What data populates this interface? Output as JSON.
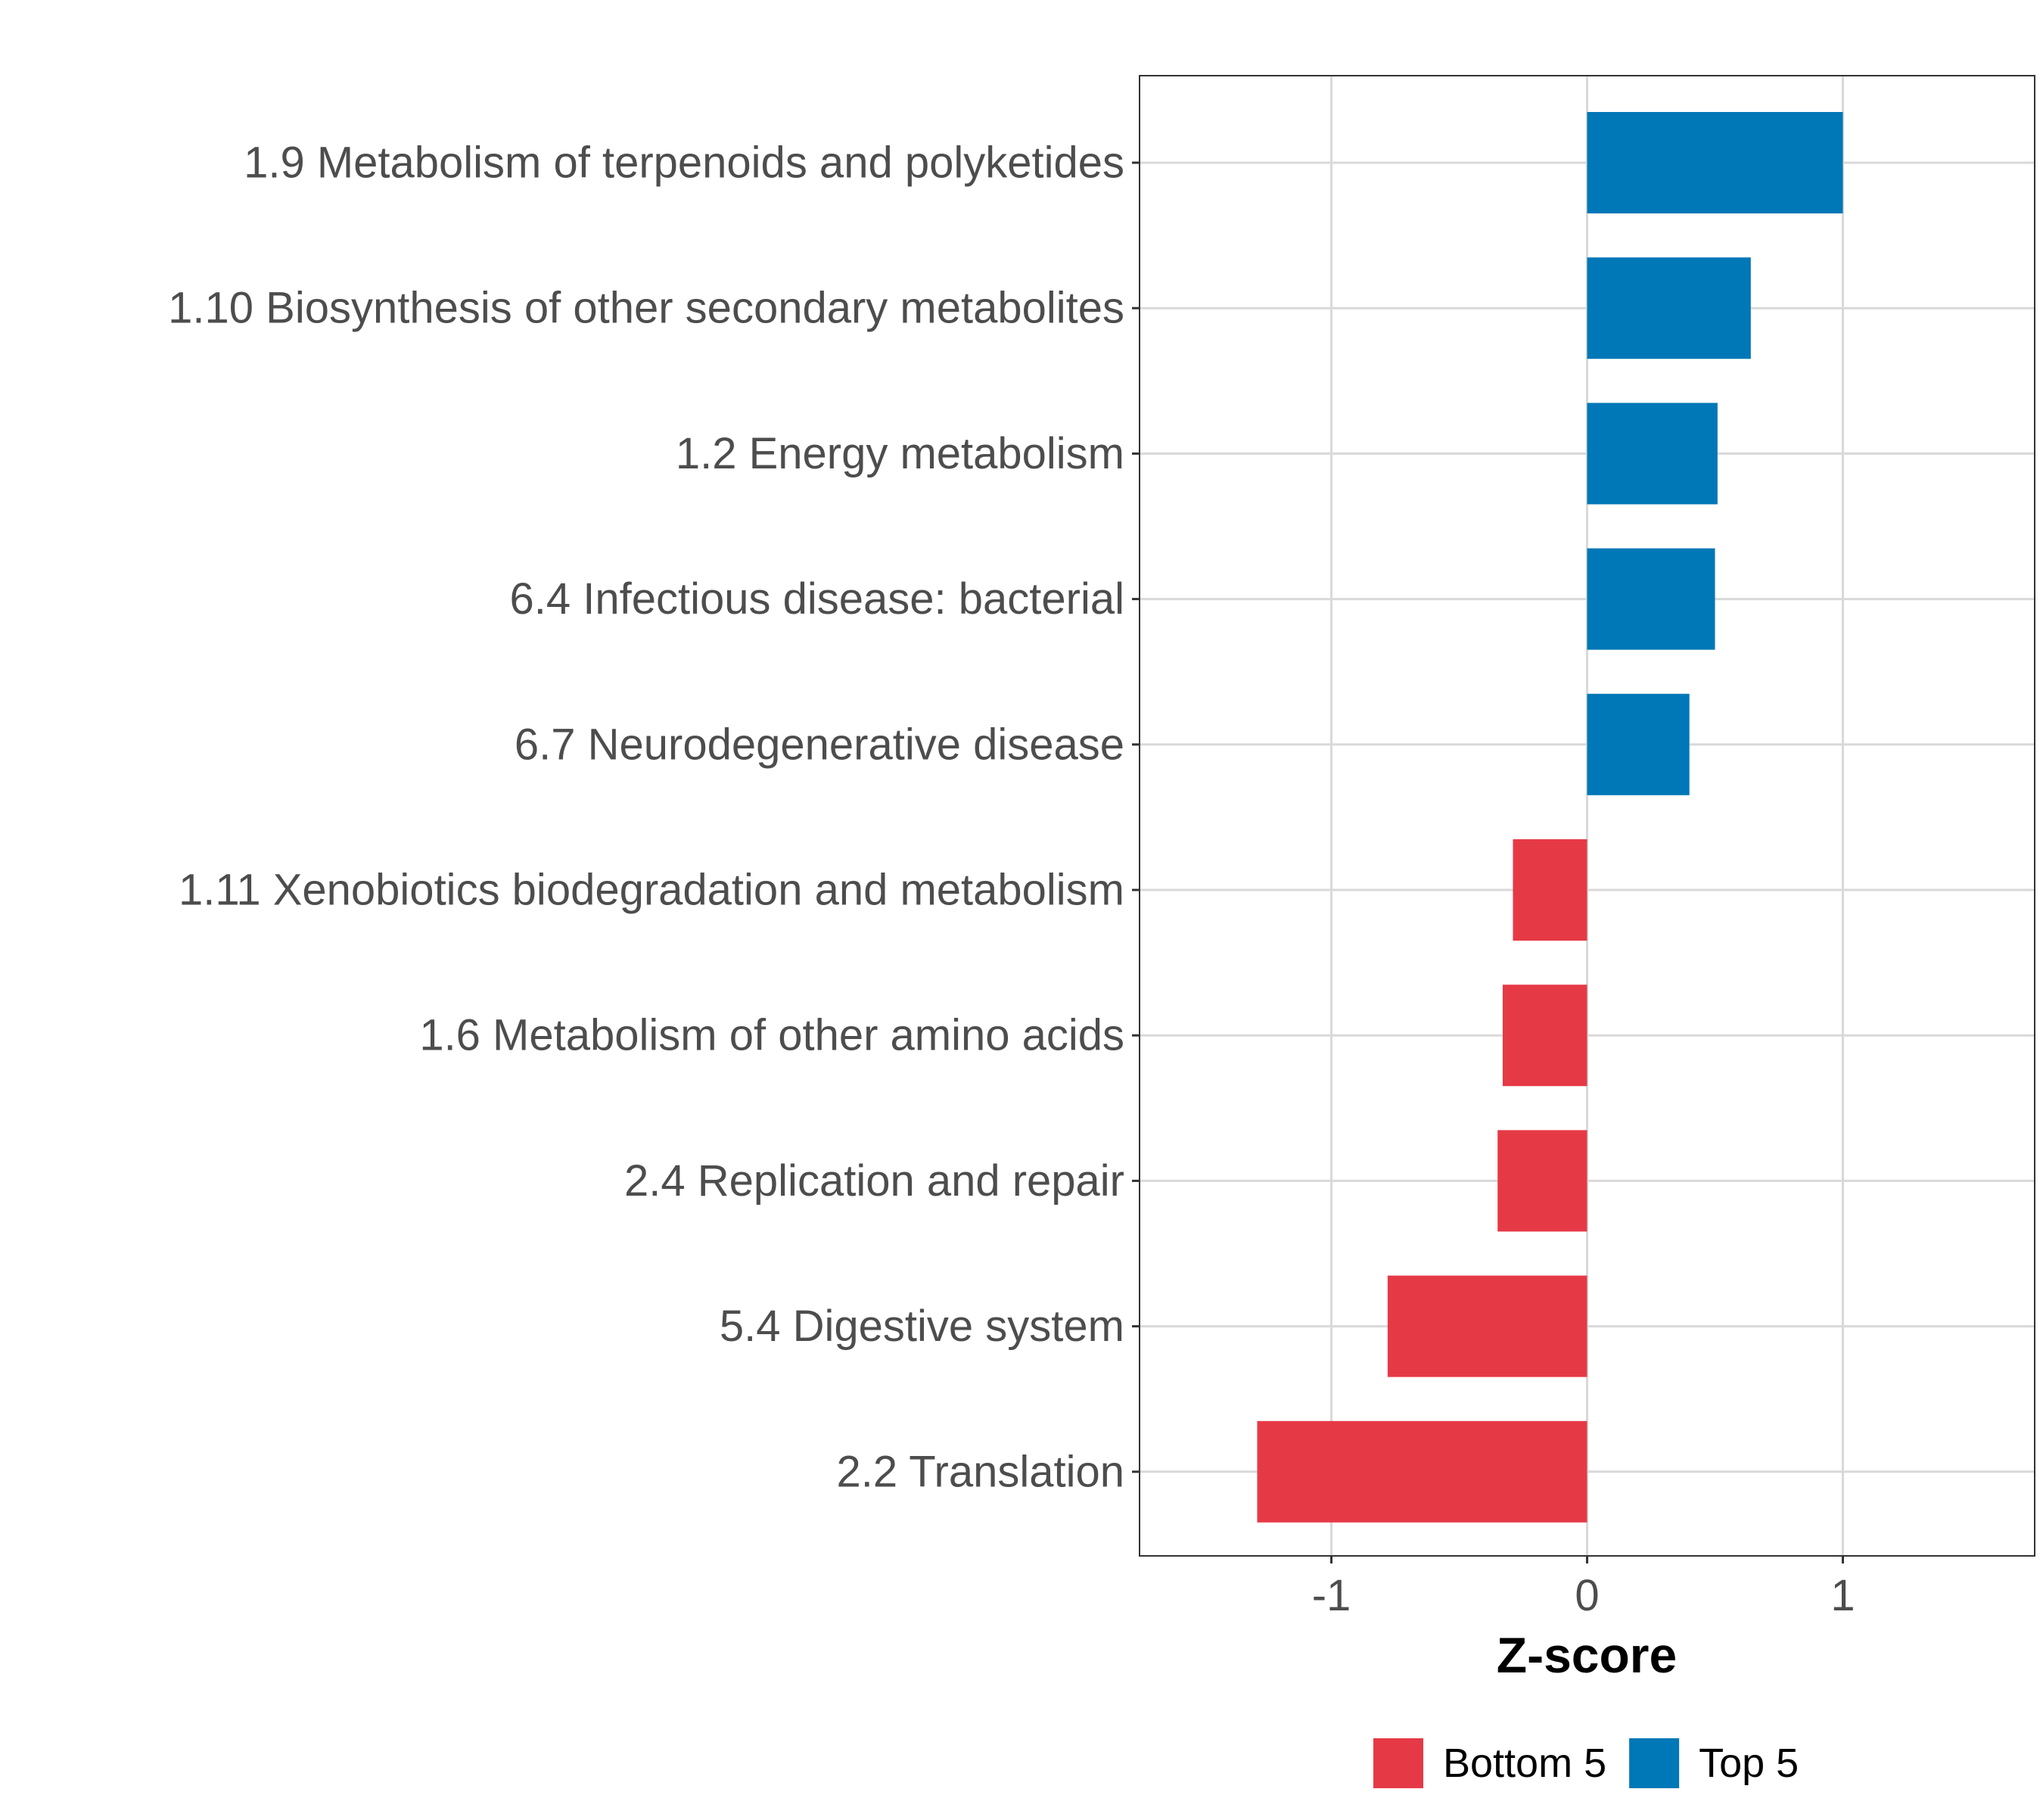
{
  "chart_data": {
    "type": "bar",
    "orientation": "horizontal",
    "categories": [
      "1.9 Metabolism of terpenoids and polyketides",
      "1.10 Biosynthesis of other secondary metabolites",
      "1.2 Energy metabolism",
      "6.4 Infectious disease: bacterial",
      "6.7 Neurodegenerative disease",
      "1.11 Xenobiotics biodegradation and metabolism",
      "1.6 Metabolism of other amino acids",
      "2.4 Replication and repair",
      "5.4 Digestive system",
      "2.2 Translation"
    ],
    "values": [
      1.0,
      0.64,
      0.51,
      0.5,
      0.4,
      -0.29,
      -0.33,
      -0.35,
      -0.78,
      -1.29
    ],
    "groups": [
      "Top 5",
      "Top 5",
      "Top 5",
      "Top 5",
      "Top 5",
      "Bottom 5",
      "Bottom 5",
      "Bottom 5",
      "Bottom 5",
      "Bottom 5"
    ],
    "xlabel": "Z-score",
    "ylabel": "",
    "xlim": [
      -1.75,
      1.75
    ],
    "xticks": [
      -1,
      0,
      1
    ],
    "xtick_labels": [
      "-1",
      "0",
      "1"
    ],
    "grid": true,
    "legend": {
      "position": "bottom",
      "entries": [
        {
          "label": "Bottom 5",
          "color": "#E63946"
        },
        {
          "label": "Top 5",
          "color": "#0077B6"
        }
      ]
    },
    "colors": {
      "Top 5": "#0077B6",
      "Bottom 5": "#E63946",
      "grid": "#D9D9D9",
      "axis_text": "#4D4D4D",
      "title_text": "#000000"
    }
  }
}
